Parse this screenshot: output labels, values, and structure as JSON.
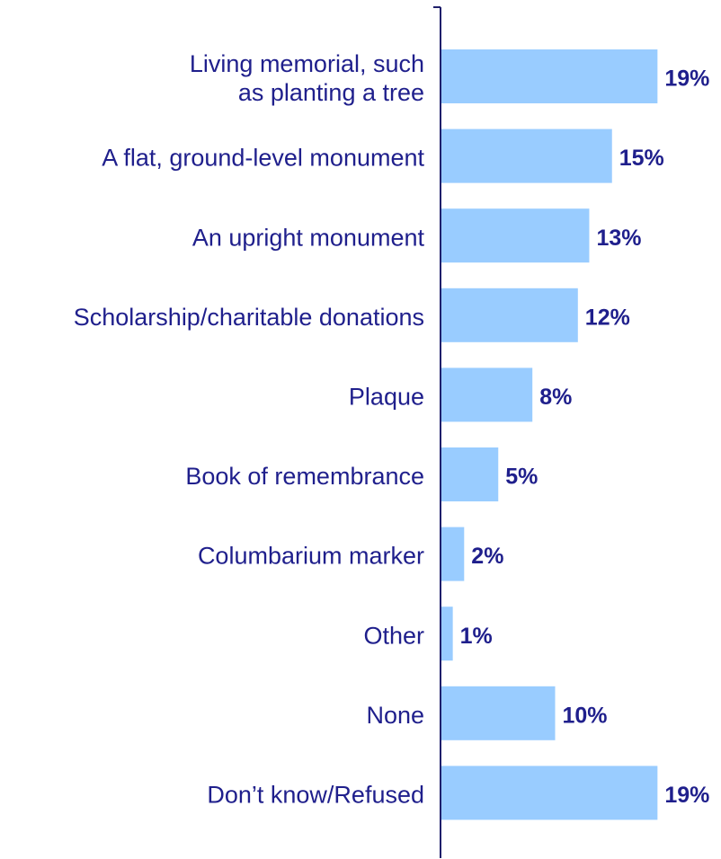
{
  "chart_data": {
    "type": "bar",
    "orientation": "horizontal",
    "categories": [
      "Living memorial, such\nas planting a tree",
      "A flat, ground-level monument",
      "An upright monument",
      "Scholarship/charitable donations",
      "Plaque",
      "Book of remembrance",
      "Columbarium marker",
      "Other",
      "None",
      "Don’t know/Refused"
    ],
    "values": [
      19,
      15,
      13,
      12,
      8,
      5,
      2,
      1,
      10,
      19
    ],
    "value_labels": [
      "19%",
      "15%",
      "13%",
      "12%",
      "8%",
      "5%",
      "2%",
      "1%",
      "10%",
      "19%"
    ],
    "color": "#99ccff"
  }
}
